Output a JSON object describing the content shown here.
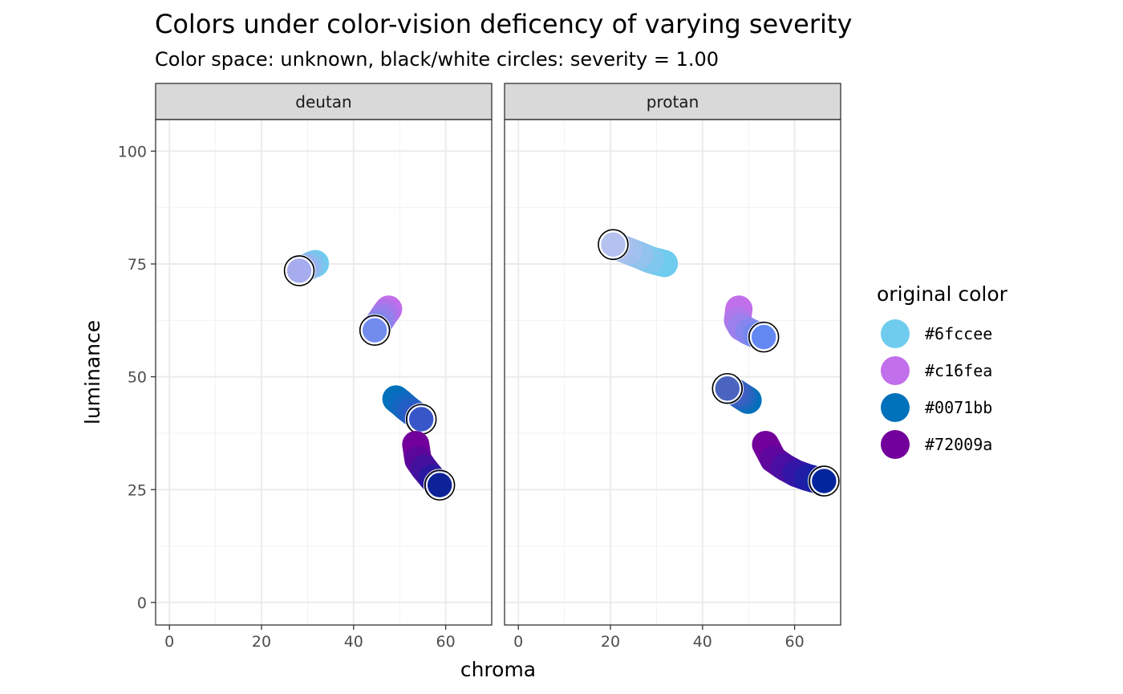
{
  "chart_data": {
    "type": "scatter",
    "title": "Colors under color-vision deficency of varying severity",
    "subtitle": "Color space: unknown, black/white circles: severity = 1.00",
    "xlabel": "chroma",
    "ylabel": "luminance",
    "xlim": [
      -3,
      70
    ],
    "ylim": [
      -5,
      107
    ],
    "xticks": [
      0,
      20,
      40,
      60
    ],
    "yticks": [
      0,
      25,
      50,
      75,
      100
    ],
    "grid": true,
    "legend": {
      "title": "original color",
      "position": "right",
      "entries": [
        {
          "label": "#6fccee",
          "color": "#6fccee"
        },
        {
          "label": "#c16fea",
          "color": "#c16fea"
        },
        {
          "label": "#0071bb",
          "color": "#0071bb"
        },
        {
          "label": "#72009a",
          "color": "#72009a"
        }
      ]
    },
    "facets": [
      {
        "name": "deutan",
        "series": [
          {
            "original": "#6fccee",
            "points": [
              {
                "x": 31.7,
                "y": 75.1,
                "color": "#6fccee"
              },
              {
                "x": 30.9,
                "y": 74.8,
                "color": "#7dc3ee"
              },
              {
                "x": 30.1,
                "y": 74.4,
                "color": "#8bbbee"
              },
              {
                "x": 29.4,
                "y": 74.1,
                "color": "#98b3ee"
              },
              {
                "x": 28.7,
                "y": 73.8,
                "color": "#a2aeee"
              },
              {
                "x": 28.2,
                "y": 73.5,
                "color": "#a7acef",
                "final": true
              }
            ]
          },
          {
            "original": "#c16fea",
            "points": [
              {
                "x": 47.6,
                "y": 65.0,
                "color": "#c16fea"
              },
              {
                "x": 47.0,
                "y": 64.2,
                "color": "#b173ea"
              },
              {
                "x": 46.4,
                "y": 63.3,
                "color": "#a17aea"
              },
              {
                "x": 45.8,
                "y": 62.4,
                "color": "#9181ea"
              },
              {
                "x": 45.2,
                "y": 61.4,
                "color": "#8187ea"
              },
              {
                "x": 44.6,
                "y": 60.3,
                "color": "#728ced",
                "final": true
              }
            ]
          },
          {
            "original": "#0071bb",
            "points": [
              {
                "x": 49.2,
                "y": 45.1,
                "color": "#0071bb"
              },
              {
                "x": 50.3,
                "y": 44.2,
                "color": "#0a6cbe"
              },
              {
                "x": 51.3,
                "y": 43.3,
                "color": "#1466c1"
              },
              {
                "x": 52.4,
                "y": 42.4,
                "color": "#2060c4"
              },
              {
                "x": 53.6,
                "y": 41.5,
                "color": "#2c59c6"
              },
              {
                "x": 54.7,
                "y": 40.6,
                "color": "#3856c8",
                "final": true
              }
            ]
          },
          {
            "original": "#72009a",
            "points": [
              {
                "x": 53.5,
                "y": 35.0,
                "color": "#72009a"
              },
              {
                "x": 54.0,
                "y": 31.6,
                "color": "#5c069c"
              },
              {
                "x": 55.3,
                "y": 29.7,
                "color": "#44109e"
              },
              {
                "x": 57.0,
                "y": 27.6,
                "color": "#2c18a0"
              },
              {
                "x": 58.2,
                "y": 26.4,
                "color": "#1a1ea0"
              },
              {
                "x": 58.7,
                "y": 26.0,
                "color": "#0d2299",
                "final": true
              }
            ]
          }
        ]
      },
      {
        "name": "protan",
        "series": [
          {
            "original": "#6fccee",
            "points": [
              {
                "x": 31.7,
                "y": 75.1,
                "color": "#6fccee"
              },
              {
                "x": 28.7,
                "y": 75.9,
                "color": "#80c7ee"
              },
              {
                "x": 26.4,
                "y": 76.9,
                "color": "#91c3ee"
              },
              {
                "x": 24.1,
                "y": 77.8,
                "color": "#a0c1ee"
              },
              {
                "x": 22.1,
                "y": 78.6,
                "color": "#abbfee"
              },
              {
                "x": 20.6,
                "y": 79.3,
                "color": "#b5c1ee",
                "final": true
              }
            ]
          },
          {
            "original": "#c16fea",
            "points": [
              {
                "x": 47.9,
                "y": 65.0,
                "color": "#c16fea"
              },
              {
                "x": 47.6,
                "y": 62.5,
                "color": "#ae78ea"
              },
              {
                "x": 48.4,
                "y": 61.0,
                "color": "#9b80ec"
              },
              {
                "x": 50.1,
                "y": 60.0,
                "color": "#8785ee"
              },
              {
                "x": 51.7,
                "y": 59.3,
                "color": "#7588f0"
              },
              {
                "x": 53.3,
                "y": 58.8,
                "color": "#6488f2",
                "final": true
              }
            ]
          },
          {
            "original": "#0071bb",
            "points": [
              {
                "x": 49.9,
                "y": 44.8,
                "color": "#0071bb"
              },
              {
                "x": 49.1,
                "y": 45.3,
                "color": "#146bbd"
              },
              {
                "x": 48.2,
                "y": 45.9,
                "color": "#2865bf"
              },
              {
                "x": 47.3,
                "y": 46.5,
                "color": "#3860c1"
              },
              {
                "x": 46.4,
                "y": 47.0,
                "color": "#4460c2"
              },
              {
                "x": 45.4,
                "y": 47.4,
                "color": "#4a64c0",
                "final": true
              }
            ]
          },
          {
            "original": "#72009a",
            "points": [
              {
                "x": 53.7,
                "y": 35.0,
                "color": "#72009a"
              },
              {
                "x": 55.4,
                "y": 31.7,
                "color": "#5e079e"
              },
              {
                "x": 57.8,
                "y": 30.0,
                "color": "#4a0ea2"
              },
              {
                "x": 60.3,
                "y": 28.6,
                "color": "#3416a6"
              },
              {
                "x": 62.8,
                "y": 27.7,
                "color": "#201ea6"
              },
              {
                "x": 65.3,
                "y": 27.0,
                "color": "#0e28a4"
              },
              {
                "x": 66.4,
                "y": 26.9,
                "color": "#02259e",
                "final": true
              }
            ]
          }
        ]
      }
    ]
  }
}
